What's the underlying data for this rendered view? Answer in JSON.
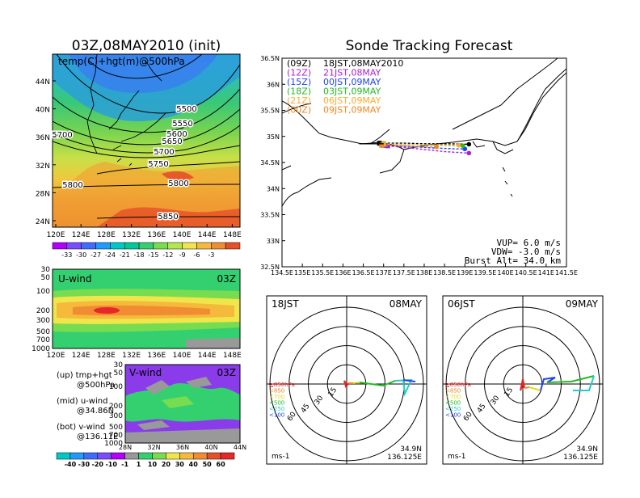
{
  "left": {
    "top_title": "03Z,08MAY2010 (init)",
    "top_label": "temp(C)+hgt(m)@500hPa",
    "lat_ticks": [
      "44N",
      "40N",
      "36N",
      "32N",
      "28N",
      "24N"
    ],
    "lon_ticks": [
      "120E",
      "124E",
      "128E",
      "132E",
      "136E",
      "140E",
      "144E",
      "148E"
    ],
    "contour_labels": [
      "5500",
      "5550",
      "5600",
      "5650",
      "5700",
      "5750",
      "5800",
      "5800",
      "5850",
      "5700"
    ],
    "temp_colorbar": [
      "-33",
      "-30",
      "-27",
      "-24",
      "-21",
      "-18",
      "-15",
      "-12",
      "-9",
      "-6",
      "-3"
    ],
    "temp_colors": [
      "#b200ff",
      "#7a4bff",
      "#3f6cff",
      "#1f9aff",
      "#00c8c8",
      "#00c896",
      "#34d070",
      "#78dc50",
      "#b4e650",
      "#f0e64b",
      "#f5b93c",
      "#f08c32",
      "#e65028"
    ],
    "u_wind": {
      "label": "U-wind",
      "time": "03Z",
      "p_ticks": [
        "30",
        "50",
        "100",
        "200",
        "300",
        "500",
        "700",
        "1000"
      ],
      "lon_ticks": [
        "120E",
        "124E",
        "128E",
        "132E",
        "136E",
        "140E",
        "144E",
        "148E"
      ]
    },
    "v_wind": {
      "label": "V-wind",
      "time": "03Z",
      "p_ticks": [
        "30",
        "50",
        "100",
        "200",
        "300",
        "500",
        "700",
        "1000"
      ],
      "lat_ticks": [
        "28N",
        "32N",
        "36N",
        "40N",
        "44N"
      ]
    },
    "legend_notes": [
      {
        "a": "(up) tmp+hgt",
        "b": "@500hPa"
      },
      {
        "a": "(mid) u-wind",
        "b": "@34.86N"
      },
      {
        "a": "(bot) v-wind",
        "b": "@136.11E"
      }
    ],
    "wind_colorbar": [
      "-40",
      "-30",
      "-20",
      "-10",
      "-1",
      "1",
      "10",
      "20",
      "30",
      "40",
      "50",
      "60"
    ],
    "wind_colors": [
      "#00c8c8",
      "#1f9aff",
      "#3f6cff",
      "#7a4bff",
      "#b200ff",
      "#999999",
      "#34d070",
      "#78dc50",
      "#f0e64b",
      "#f5b93c",
      "#f08c32",
      "#e65028",
      "#e62828"
    ]
  },
  "tracking": {
    "title": "Sonde Tracking Forecast",
    "lat_ticks": [
      "36.5N",
      "36N",
      "35.5N",
      "35N",
      "34.5N",
      "34N",
      "33.5N",
      "33N",
      "32.5N"
    ],
    "lon_ticks": [
      "134.5E",
      "135E",
      "135.5E",
      "136E",
      "136.5E",
      "137E",
      "137.5E",
      "138E",
      "138.5E",
      "139E",
      "139.5E",
      "140E",
      "140.5E",
      "141E",
      "141.5E"
    ],
    "runs": [
      {
        "code": "(09Z)",
        "time": "18JST,08MAY2010",
        "color": "#000000"
      },
      {
        "code": "(12Z)",
        "time": "21JST,08MAY",
        "color": "#aa22cc"
      },
      {
        "code": "(15Z)",
        "time": "00JST,09MAY",
        "color": "#2244ee"
      },
      {
        "code": "(18Z)",
        "time": "03JST,09MAY",
        "color": "#22bb22"
      },
      {
        "code": "(21Z)",
        "time": "06JST,09MAY",
        "color": "#ffaa33"
      },
      {
        "code": "(00Z)",
        "time": "09JST,09MAY",
        "color": "#ee8822"
      }
    ],
    "tracks": [
      {
        "color": "#000000",
        "pts": [
          [
            136.9,
            34.87
          ],
          [
            137.5,
            34.87
          ],
          [
            138.0,
            34.86
          ],
          [
            138.6,
            34.86
          ],
          [
            139.1,
            34.85
          ]
        ]
      },
      {
        "color": "#aa22cc",
        "pts": [
          [
            137.1,
            34.82
          ],
          [
            137.5,
            34.79
          ],
          [
            138.0,
            34.75
          ],
          [
            138.5,
            34.71
          ],
          [
            139.1,
            34.68
          ]
        ]
      },
      {
        "color": "#2244ee",
        "pts": [
          [
            137.0,
            34.83
          ],
          [
            137.6,
            34.81
          ],
          [
            138.2,
            34.78
          ],
          [
            138.8,
            34.76
          ],
          [
            139.0,
            34.76
          ]
        ]
      },
      {
        "color": "#22bb22",
        "pts": [
          [
            137.0,
            34.86
          ],
          [
            137.5,
            34.85
          ],
          [
            138.0,
            34.84
          ],
          [
            138.5,
            34.83
          ],
          [
            138.95,
            34.82
          ]
        ]
      },
      {
        "color": "#ffaa33",
        "pts": [
          [
            137.0,
            34.85
          ],
          [
            137.5,
            34.85
          ],
          [
            138.0,
            34.84
          ],
          [
            138.4,
            34.84
          ],
          [
            138.85,
            34.83
          ]
        ]
      },
      {
        "color": "#ee8822",
        "pts": [
          [
            136.95,
            34.83
          ],
          [
            137.5,
            34.82
          ],
          [
            138.0,
            34.8
          ],
          [
            138.3,
            34.8
          ]
        ]
      }
    ],
    "vup": "VUP=  6.0 m/s",
    "vdw": "VDW= -3.0 m/s",
    "burst": "Burst Alt= 34.0 km"
  },
  "hodo_left": {
    "time": "18JST",
    "date": "08MAY",
    "ring_labels": [
      "15",
      "30",
      "45",
      "60"
    ],
    "levels": [
      "≧850hPa",
      "<850",
      "<700",
      "<500",
      "<250",
      "<100"
    ],
    "level_colors": [
      "#ee2222",
      "#ee8822",
      "#dddd22",
      "#22bb22",
      "#22cccc",
      "#2244ee"
    ],
    "unit": "ms-1",
    "lat": "34.9N",
    "lon": "136.125E"
  },
  "hodo_right": {
    "time": "06JST",
    "date": "09MAY",
    "ring_labels": [
      "15",
      "30",
      "45",
      "60"
    ],
    "levels": [
      "≧850hPa",
      "<850",
      "<700",
      "<500",
      "<250",
      "<100"
    ],
    "level_colors": [
      "#ee2222",
      "#ee8822",
      "#dddd22",
      "#22bb22",
      "#22cccc",
      "#2244ee"
    ],
    "unit": "ms-1",
    "lat": "34.9N",
    "lon": "136.125E"
  },
  "chart_data": [
    {
      "type": "heatmap",
      "title": "03Z,08MAY2010 (init)",
      "subtitle": "temp(C)+hgt(m)@500hPa",
      "x_range": [
        "120E",
        "148E"
      ],
      "y_range": [
        "24N",
        "44N"
      ],
      "color_levels": [
        -33,
        -30,
        -27,
        -24,
        -21,
        -18,
        -15,
        -12,
        -9,
        -6,
        -3
      ],
      "contours": [
        5500,
        5550,
        5600,
        5650,
        5700,
        5750,
        5800,
        5850
      ]
    },
    {
      "type": "heatmap",
      "title": "U-wind",
      "x_range": [
        "120E",
        "148E"
      ],
      "y_ticks": [
        30,
        50,
        100,
        200,
        300,
        500,
        700,
        1000
      ]
    },
    {
      "type": "heatmap",
      "title": "V-wind",
      "x_range": [
        "28N",
        "44N"
      ],
      "y_ticks": [
        30,
        50,
        100,
        200,
        300,
        500,
        700,
        1000
      ],
      "color_levels": [
        -40,
        -30,
        -20,
        -10,
        -1,
        1,
        10,
        20,
        30,
        40,
        50,
        60
      ]
    },
    {
      "type": "line",
      "title": "Sonde Tracking Forecast",
      "xlim": [
        134.5,
        141.5
      ],
      "ylim": [
        32.5,
        36.5
      ],
      "series": [
        {
          "name": "(09Z) 18JST,08MAY2010",
          "x": [
            136.9,
            137.5,
            138.0,
            138.6,
            139.1
          ],
          "y": [
            34.87,
            34.87,
            34.86,
            34.86,
            34.85
          ]
        },
        {
          "name": "(12Z) 21JST,08MAY",
          "x": [
            137.1,
            137.5,
            138.0,
            138.5,
            139.1
          ],
          "y": [
            34.82,
            34.79,
            34.75,
            34.71,
            34.68
          ]
        },
        {
          "name": "(15Z) 00JST,09MAY",
          "x": [
            137.0,
            137.6,
            138.2,
            138.8,
            139.0
          ],
          "y": [
            34.83,
            34.81,
            34.78,
            34.76,
            34.76
          ]
        },
        {
          "name": "(18Z) 03JST,09MAY",
          "x": [
            137.0,
            137.5,
            138.0,
            138.5,
            138.95
          ],
          "y": [
            34.86,
            34.85,
            34.84,
            34.83,
            34.82
          ]
        },
        {
          "name": "(21Z) 06JST,09MAY",
          "x": [
            137.0,
            137.5,
            138.0,
            138.4,
            138.85
          ],
          "y": [
            34.85,
            34.85,
            34.84,
            34.84,
            34.83
          ]
        },
        {
          "name": "(00Z) 09JST,09MAY",
          "x": [
            136.95,
            137.5,
            138.0,
            138.3
          ],
          "y": [
            34.83,
            34.82,
            34.8,
            34.8
          ]
        }
      ]
    }
  ]
}
